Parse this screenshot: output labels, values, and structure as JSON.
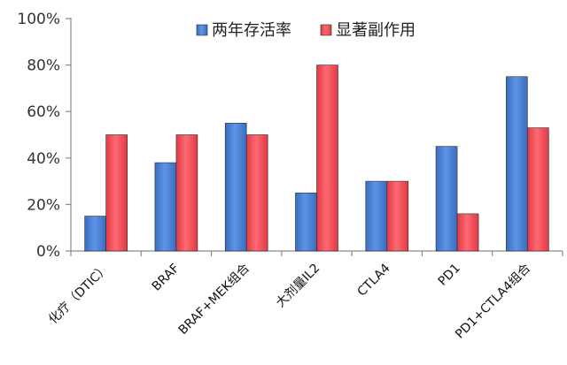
{
  "chart_data": {
    "type": "bar",
    "categories": [
      "化疗（DTIC）",
      "BRAF",
      "BRAF+MEK组合",
      "大剂量IL2",
      "CTLA4",
      "PD1",
      "PD1+CTLA4组合"
    ],
    "series": [
      {
        "name": "两年存活率",
        "color": "#4f81d3",
        "values": [
          15,
          38,
          55,
          25,
          30,
          45,
          75
        ]
      },
      {
        "name": "显著副作用",
        "color": "#f04e58",
        "values": [
          50,
          50,
          50,
          80,
          30,
          16,
          53
        ]
      }
    ],
    "y_ticks": [
      "0%",
      "20%",
      "40%",
      "60%",
      "80%",
      "100%"
    ],
    "ylim": [
      0,
      100
    ],
    "grid": false,
    "legend_position": "top"
  }
}
